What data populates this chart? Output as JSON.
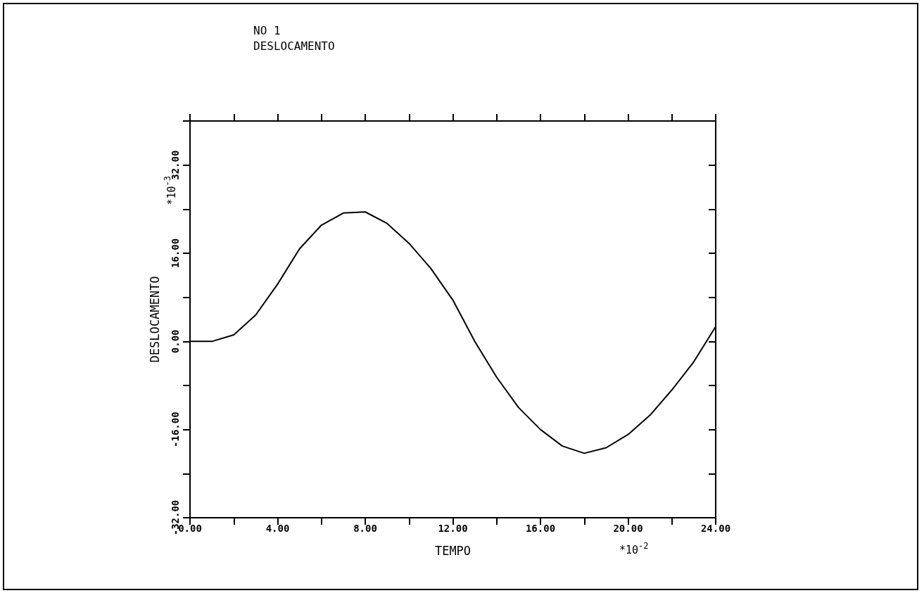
{
  "chart_data": {
    "type": "line",
    "title": "NO 1",
    "subtitle": "DESLOCAMENTO",
    "xlabel": "TEMPO",
    "ylabel": "DESLOCAMENTO",
    "annotations": [
      "*10$^{-3}$",
      "*10$^{-2}$"
    ],
    "x": [
      0,
      1,
      2,
      3,
      4,
      5,
      6,
      7,
      8,
      9,
      10,
      11,
      12,
      13,
      14,
      15,
      16,
      17,
      18,
      19,
      20,
      21,
      22,
      23,
      24
    ],
    "series": [
      {
        "color": "#000000",
        "values": [
          0,
          0,
          1.2,
          4.8,
          10.4,
          16.8,
          21.1,
          23.3,
          23.5,
          21.4,
          17.8,
          13.2,
          7.5,
          0,
          -6.5,
          -12,
          -16,
          -19,
          -20.3,
          -19.3,
          -16.9,
          -13.4,
          -8.8,
          -3.7,
          2.7
        ]
      }
    ],
    "xlim": [
      0,
      24
    ],
    "xticks": [
      {
        "value": 0,
        "label": "0.00"
      },
      {
        "value": 2,
        "label": null
      },
      {
        "value": 4,
        "label": "4.00"
      },
      {
        "value": 6,
        "label": null
      },
      {
        "value": 8,
        "label": "8.00"
      },
      {
        "value": 10,
        "label": null
      },
      {
        "value": 12,
        "label": "12.00"
      },
      {
        "value": 14,
        "label": null
      },
      {
        "value": 16,
        "label": "16.00"
      },
      {
        "value": 18,
        "label": null
      },
      {
        "value": 20,
        "label": "20.00"
      },
      {
        "value": 22,
        "label": null
      },
      {
        "value": 24,
        "label": "24.00"
      }
    ],
    "ylim": [
      -32,
      40
    ],
    "yticks": [
      {
        "value": -32,
        "label": "-32.00"
      },
      {
        "value": -24,
        "label": null
      },
      {
        "value": -16,
        "label": "-16.00"
      },
      {
        "value": -8,
        "label": null
      },
      {
        "value": 0,
        "label": "0.00"
      },
      {
        "value": 8,
        "label": null
      },
      {
        "value": 16,
        "label": "16.00"
      },
      {
        "value": 24,
        "label": null
      },
      {
        "value": 32,
        "label": "32.00"
      },
      {
        "value": 40,
        "label": null
      }
    ],
    "grid": false,
    "marker": "none",
    "line_style": "solid"
  }
}
